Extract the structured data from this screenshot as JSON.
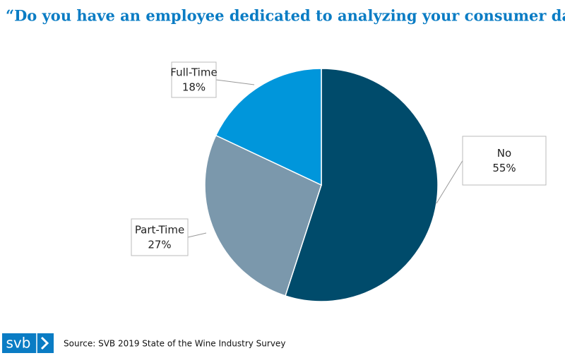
{
  "chart_data": {
    "type": "pie",
    "title": "“Do you have an employee dedicated to analyzing your consumer data?”",
    "categories": [
      "No",
      "Part-Time",
      "Full-Time"
    ],
    "values": [
      55,
      27,
      18
    ],
    "value_labels": [
      "55%",
      "27%",
      "18%"
    ],
    "colors": [
      "#004b6b",
      "#7b98ac",
      "#0096db"
    ],
    "source": "Source: SVB 2019 State of the Wine Industry Survey",
    "logo": "svb"
  }
}
